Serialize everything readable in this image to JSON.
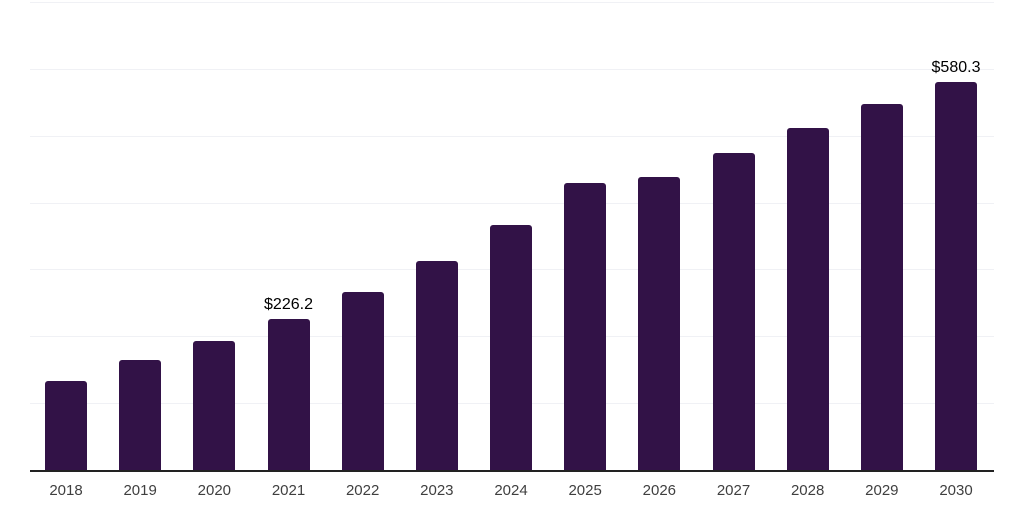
{
  "chart_data": {
    "type": "bar",
    "title": "",
    "xlabel": "",
    "ylabel": "",
    "categories": [
      "2018",
      "2019",
      "2020",
      "2021",
      "2022",
      "2023",
      "2024",
      "2025",
      "2026",
      "2027",
      "2028",
      "2029",
      "2030"
    ],
    "values": [
      133.2,
      164.6,
      193.1,
      226.2,
      265.9,
      312.3,
      366.5,
      429.9,
      438.4,
      473.9,
      511.3,
      547.6,
      580.3
    ],
    "value_labels": [
      "",
      "",
      "",
      "$226.2",
      "",
      "",
      "",
      "",
      "",
      "",
      "",
      "",
      "$580.3"
    ],
    "ylim": [
      0,
      700
    ],
    "gridline_values": [
      100,
      200,
      300,
      400,
      500,
      600,
      700
    ],
    "grid": "horizontal-only",
    "legend": "none",
    "bar_corner": "rounded-top"
  },
  "colors": {
    "background": "#ffffff",
    "bar": "#321247",
    "axis": "#222222",
    "gridline": "#f0f1f5",
    "value_label": "#000000",
    "tick_label": "#3f3f3f"
  }
}
